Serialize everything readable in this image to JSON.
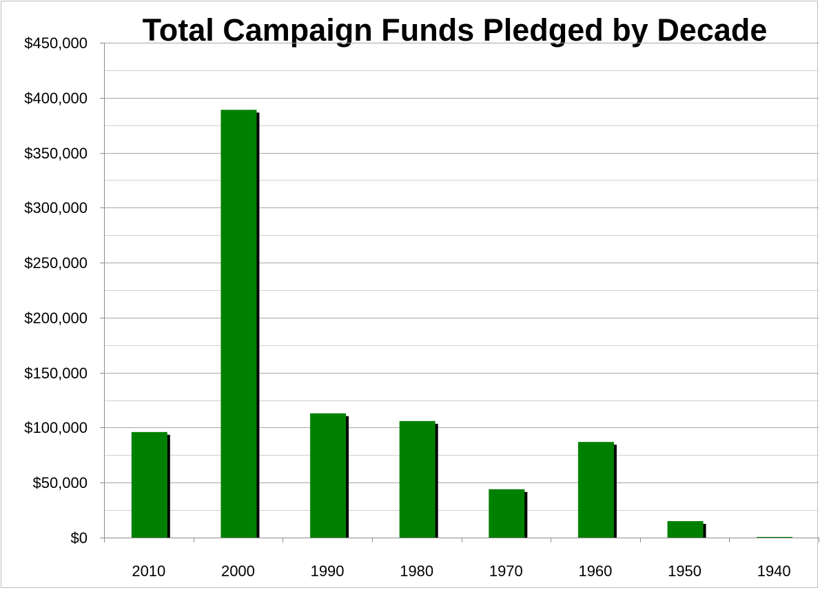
{
  "chart_data": {
    "type": "bar",
    "title": "Total Campaign Funds Pledged by Decade",
    "xlabel": "",
    "ylabel": "",
    "categories": [
      "2010",
      "2000",
      "1990",
      "1980",
      "1970",
      "1960",
      "1950",
      "1940"
    ],
    "values": [
      96000,
      389000,
      113000,
      106000,
      44000,
      87000,
      15000,
      0
    ],
    "ylim": [
      0,
      450000
    ],
    "y_ticks": [
      0,
      50000,
      100000,
      150000,
      200000,
      250000,
      300000,
      350000,
      400000,
      450000
    ],
    "y_tick_labels": [
      "$0",
      "$50,000",
      "$100,000",
      "$150,000",
      "$200,000",
      "$250,000",
      "$300,000",
      "$350,000",
      "$400,000",
      "$450,000"
    ],
    "grid": true,
    "legend": "none",
    "colors": {
      "bar": "#008000",
      "bar_shadow": "#000000",
      "major_grid": "#a6a6a6",
      "minor_grid": "#d0d0d0",
      "axis": "#8c8c8c"
    }
  }
}
